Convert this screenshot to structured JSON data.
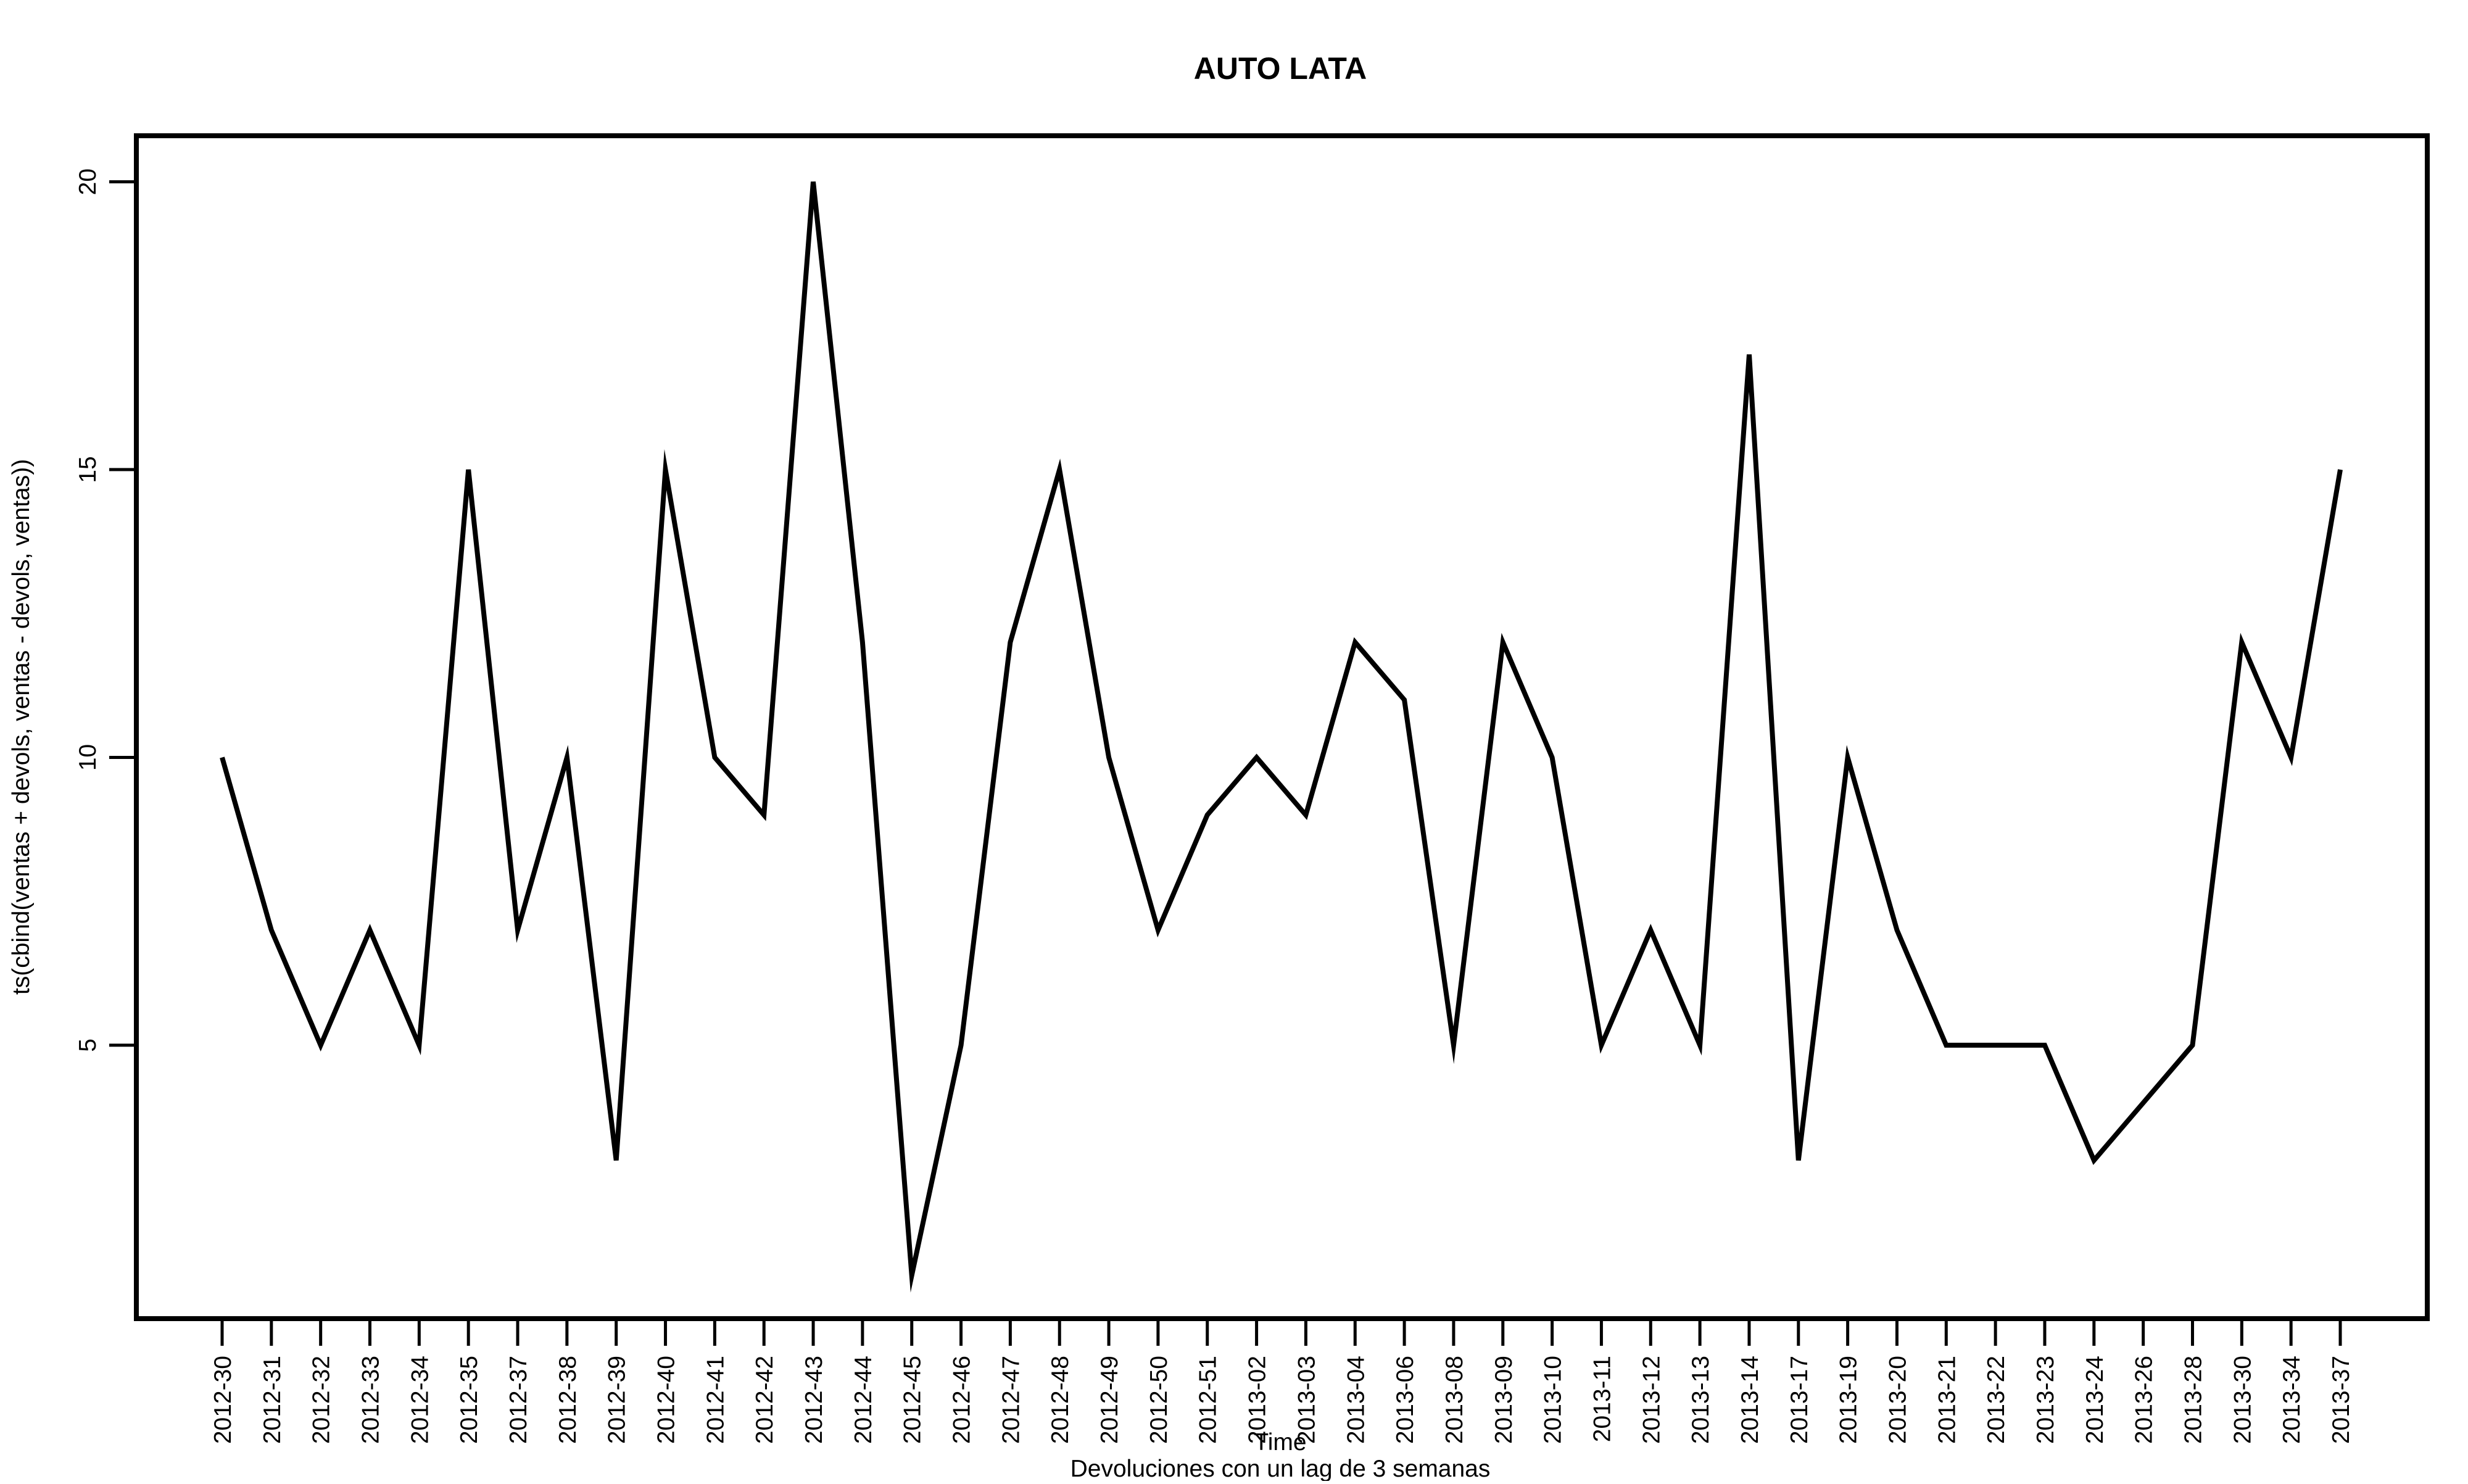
{
  "chart_data": {
    "type": "line",
    "title": "AUTO LATA",
    "xlabel": "Time",
    "ylabel": "ts(cbind(ventas + devols, ventas - devols, ventas))",
    "subtitle": "Devoluciones con un lag de 3 semanas",
    "categories": [
      "2012-30",
      "2012-31",
      "2012-32",
      "2012-33",
      "2012-34",
      "2012-35",
      "2012-37",
      "2012-38",
      "2012-39",
      "2012-40",
      "2012-41",
      "2012-42",
      "2012-43",
      "2012-44",
      "2012-45",
      "2012-46",
      "2012-47",
      "2012-48",
      "2012-49",
      "2012-50",
      "2012-51",
      "2013-02",
      "2013-03",
      "2013-04",
      "2013-06",
      "2013-08",
      "2013-09",
      "2013-10",
      "2013-11",
      "2013-12",
      "2013-13",
      "2013-14",
      "2013-17",
      "2013-19",
      "2013-20",
      "2013-21",
      "2013-22",
      "2013-23",
      "2013-24",
      "2013-26",
      "2013-28",
      "2013-30",
      "2013-34",
      "2013-37"
    ],
    "series": [
      {
        "values": [
          10,
          7,
          5,
          7,
          5,
          15,
          7,
          10,
          3,
          15,
          10,
          9,
          20,
          12,
          1,
          5,
          12,
          15,
          10,
          7,
          9,
          10,
          9,
          12,
          11,
          5,
          12,
          10,
          5,
          7,
          5,
          17,
          3,
          10,
          7,
          5,
          5,
          5,
          3,
          4,
          5,
          12,
          10,
          15
        ],
        "color": "#000000"
      }
    ],
    "yticks": [
      5,
      10,
      15,
      20
    ],
    "ylim": [
      0.25,
      20.8
    ],
    "grid": false,
    "legend": "none"
  }
}
